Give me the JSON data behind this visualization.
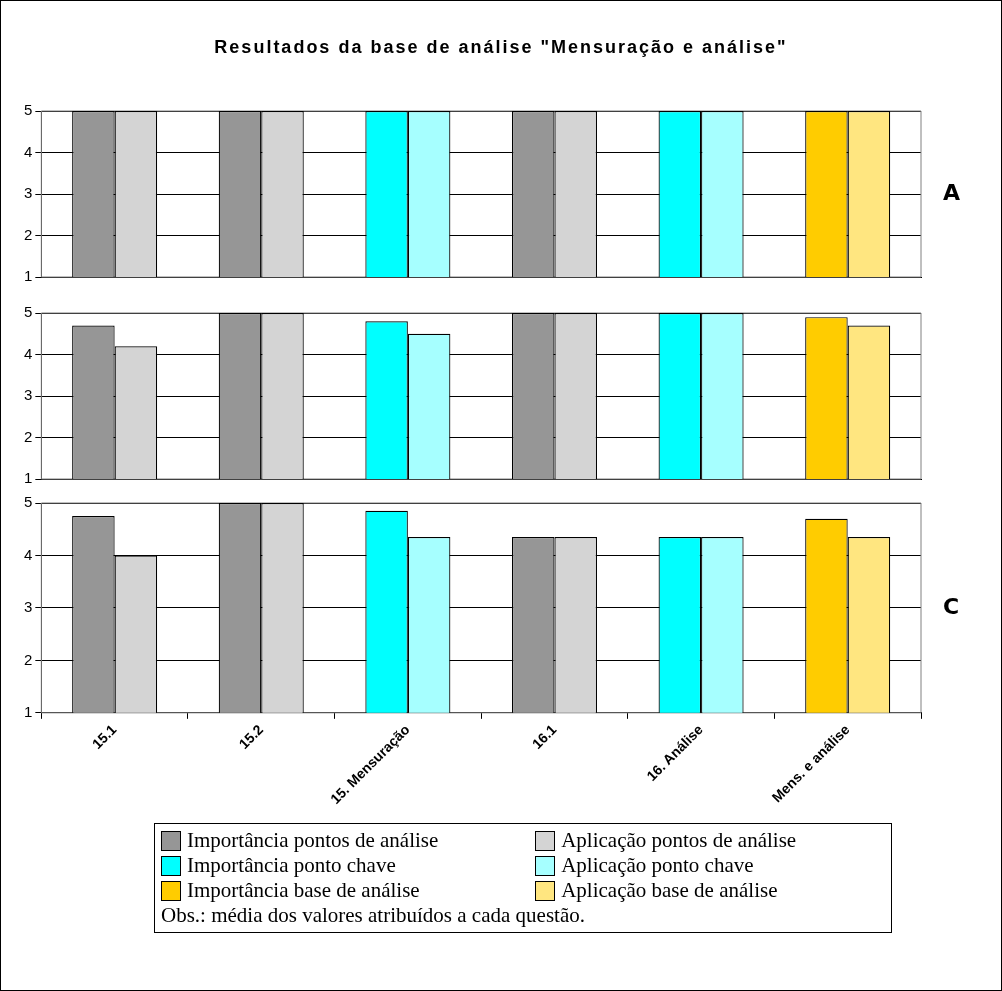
{
  "chart_data": [
    {
      "type": "bar",
      "title": "Resultados da base de análise \"Mensuração e análise\"",
      "categories": [
        null,
        null,
        null,
        null,
        null,
        null
      ],
      "series": [
        {
          "color": "#969696",
          "values": [
            5,
            5,
            null,
            5,
            null,
            null
          ]
        },
        {
          "color": "#d4d4d4",
          "values": [
            5,
            5,
            null,
            5,
            null,
            null
          ]
        },
        {
          "color": "#00ffff",
          "values": [
            null,
            null,
            5,
            null,
            5,
            null
          ]
        },
        {
          "color": "#a6ffff",
          "values": [
            null,
            null,
            5,
            null,
            5,
            null
          ]
        },
        {
          "color": "#ffcc00",
          "values": [
            null,
            null,
            null,
            null,
            null,
            5
          ]
        },
        {
          "color": "#ffe680",
          "values": [
            null,
            null,
            null,
            null,
            null,
            5
          ]
        }
      ],
      "ylim": [
        1,
        5
      ],
      "yticks": [
        1,
        2,
        3,
        4,
        5
      ],
      "grid": "y",
      "tick_labels": "y",
      "annotations": [
        "A"
      ]
    },
    {
      "type": "bar",
      "categories": [
        null,
        null,
        null,
        null,
        null,
        null
      ],
      "series": [
        {
          "color": "#969696",
          "values": [
            4.7,
            5,
            null,
            5,
            null,
            null
          ]
        },
        {
          "color": "#d4d4d4",
          "values": [
            4.2,
            5,
            null,
            5,
            null,
            null
          ]
        },
        {
          "color": "#00ffff",
          "values": [
            null,
            null,
            4.8,
            null,
            5,
            null
          ]
        },
        {
          "color": "#a6ffff",
          "values": [
            null,
            null,
            4.5,
            null,
            5,
            null
          ]
        },
        {
          "color": "#ffcc00",
          "values": [
            null,
            null,
            null,
            null,
            null,
            4.9
          ]
        },
        {
          "color": "#ffe680",
          "values": [
            null,
            null,
            null,
            null,
            null,
            4.7
          ]
        }
      ],
      "ylim": [
        1,
        5
      ],
      "yticks": [
        1,
        2,
        3,
        4,
        5
      ],
      "grid": "y",
      "tick_labels": "y"
    },
    {
      "type": "bar",
      "categories": [
        "15.1",
        "15.2",
        "15. Mensuração",
        "16.1",
        "16. Análise",
        "Mens. e análise"
      ],
      "series": [
        {
          "name": "Importância pontos de análise",
          "color": "#969696",
          "values": [
            4.75,
            5,
            null,
            4.35,
            null,
            null
          ]
        },
        {
          "name": "Aplicação pontos de análise",
          "color": "#d4d4d4",
          "values": [
            4.0,
            5,
            null,
            4.35,
            null,
            null
          ]
        },
        {
          "name": "Importância ponto chave",
          "color": "#00ffff",
          "values": [
            null,
            null,
            4.85,
            null,
            4.35,
            null
          ]
        },
        {
          "name": "Aplicação ponto chave",
          "color": "#a6ffff",
          "values": [
            null,
            null,
            4.35,
            null,
            4.35,
            null
          ]
        },
        {
          "name": "Importância base de análise",
          "color": "#ffcc00",
          "values": [
            null,
            null,
            null,
            null,
            null,
            4.7
          ]
        },
        {
          "name": "Aplicação base de análise",
          "color": "#ffe680",
          "values": [
            null,
            null,
            null,
            null,
            null,
            4.35
          ]
        }
      ],
      "ylim": [
        1,
        5
      ],
      "yticks": [
        1,
        2,
        3,
        4,
        5
      ],
      "grid": "y",
      "legend": "bottom",
      "annotations": [
        "C",
        "Obs.: média dos valores atribuídos a cada questão."
      ]
    }
  ]
}
